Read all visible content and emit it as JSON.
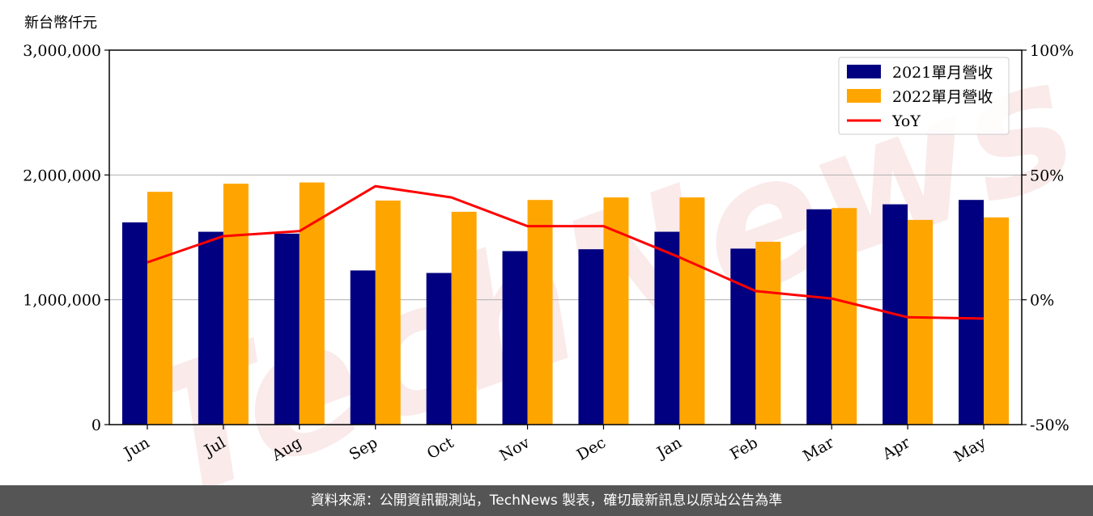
{
  "unit_label": "新台幣仟元",
  "footer_text": "資料來源：公開資訊觀測站，TechNews 製表，確切最新訊息以原站公告為準",
  "watermark_text": "TechNews",
  "colors": {
    "series_2021": "#000080",
    "series_2022": "#FFA500",
    "yoy": "#FF0000",
    "footer_bg": "#555555"
  },
  "chart_data": {
    "type": "bar",
    "categories": [
      "Jun",
      "Jul",
      "Aug",
      "Sep",
      "Oct",
      "Nov",
      "Dec",
      "Jan",
      "Feb",
      "Mar",
      "Apr",
      "May"
    ],
    "series": [
      {
        "name": "2021單月營收",
        "values": [
          1620000,
          1545000,
          1530000,
          1235000,
          1215000,
          1390000,
          1405000,
          1545000,
          1410000,
          1725000,
          1765000,
          1800000
        ]
      },
      {
        "name": "2022單月營收",
        "values": [
          1865000,
          1930000,
          1940000,
          1795000,
          1705000,
          1800000,
          1820000,
          1820000,
          1465000,
          1735000,
          1640000,
          1660000
        ]
      }
    ],
    "line_series": {
      "name": "YoY",
      "axis": "right",
      "values": [
        15.0,
        25.5,
        27.5,
        45.5,
        41.0,
        29.5,
        29.5,
        17.0,
        3.5,
        0.5,
        -7.0,
        -7.5
      ]
    },
    "y_left": {
      "range": [
        0,
        3000000
      ],
      "ticks": [
        "0",
        "1,000,000",
        "2,000,000",
        "3,000,000"
      ]
    },
    "y_right": {
      "range": [
        -50,
        100
      ],
      "ticks": [
        "-50%",
        "0%",
        "50%",
        "100%"
      ]
    },
    "grid": true,
    "legend_position": "top-right"
  }
}
